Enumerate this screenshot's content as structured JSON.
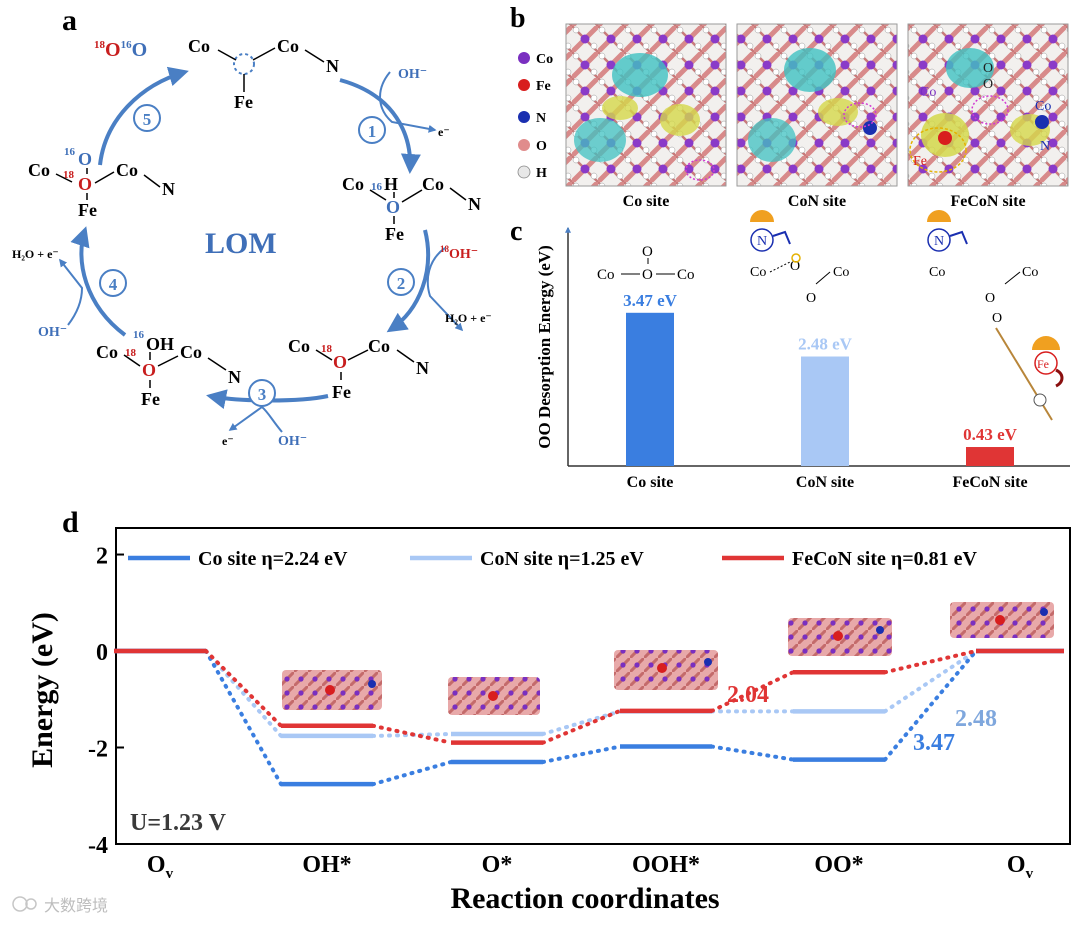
{
  "panels": {
    "a": "a",
    "b": "b",
    "c": "c",
    "d": "d"
  },
  "panel_a": {
    "center_label": "LOM",
    "step_numbers": [
      "1",
      "2",
      "3",
      "4",
      "5"
    ],
    "released": {
      "iso1": "18",
      "o1": "O",
      "iso2": "16",
      "o2": "O"
    },
    "s1_in": "OH⁻",
    "s1_out": "e⁻",
    "s2_in_iso": "18",
    "s2_in": "OH⁻",
    "s2_out": "H₂O + e⁻",
    "s3_in": "OH⁻",
    "s3_out": "e⁻",
    "s4_out": "H₂O +  e⁻",
    "s4_in": "OH⁻",
    "atoms": {
      "co": "Co",
      "fe": "Fe",
      "n": "N",
      "o": "O",
      "h": "H",
      "oh": "OH",
      "iso16": "16",
      "iso18": "18"
    }
  },
  "panel_b": {
    "legend": [
      "Co",
      "Fe",
      "N",
      "O",
      "H"
    ],
    "legend_colors": [
      "#7a2fc0",
      "#d81e1e",
      "#1a2fb0",
      "#e08c8c",
      "#e8e8e8"
    ],
    "captions": [
      "Co site",
      "CoN site",
      "FeCoN site"
    ],
    "overlay": {
      "co": "Co",
      "fe": "Fe",
      "n": "N",
      "o": "O"
    }
  },
  "chart_c": {
    "type": "bar",
    "title": "",
    "ylabel": "OO Desorption Energy (eV)",
    "categories": [
      "Co site",
      "CoN site",
      "FeCoN site"
    ],
    "values": [
      3.47,
      2.48,
      0.43
    ],
    "value_labels": [
      "3.47 eV",
      "2.48 eV",
      "0.43 eV"
    ],
    "colors": [
      "#3a7ee0",
      "#a9c8f5",
      "#e03535"
    ],
    "ylim": [
      0,
      5.3
    ],
    "insets": {
      "co": "Co",
      "o": "O",
      "n": "N",
      "fe": "Fe"
    }
  },
  "chart_data": {
    "type": "line",
    "title": "",
    "xlabel": "Reaction coordinates",
    "ylabel": "Energy (eV)",
    "categories": [
      "O_v",
      "OH*",
      "O*",
      "OOH*",
      "OO*",
      "O_v"
    ],
    "x_tick_main": [
      "O",
      "OH*",
      "O*",
      "OOH*",
      "OO*",
      "O"
    ],
    "x_tick_sub": [
      "v",
      "",
      "",
      "",
      "",
      "v"
    ],
    "ylim": [
      -4,
      2.55
    ],
    "yticks": [
      2,
      0,
      -2,
      -4
    ],
    "series": [
      {
        "name": "Co site",
        "legend": "Co  site   η=2.24 eV",
        "color": "#3a7ee0",
        "values": [
          0,
          -2.76,
          -2.3,
          -1.98,
          -2.25,
          0
        ]
      },
      {
        "name": "CoN site",
        "legend": "CoN  site   η=1.25 eV",
        "color": "#a9c8f5",
        "values": [
          0,
          -1.76,
          -1.72,
          -1.25,
          -1.25,
          0
        ]
      },
      {
        "name": "FeCoN site",
        "legend": "FeCoN  site   η=0.81 eV",
        "color": "#e03535",
        "values": [
          0,
          -1.55,
          -1.9,
          -1.24,
          -0.44,
          0
        ]
      }
    ],
    "annotations": [
      {
        "text": "2.04",
        "color": "#e03535"
      },
      {
        "text": "2.48",
        "color": "#7fa7dd"
      },
      {
        "text": "3.47",
        "color": "#3a7ee0"
      }
    ],
    "condition": "U=1.23 V"
  },
  "watermark": "大数跨境"
}
